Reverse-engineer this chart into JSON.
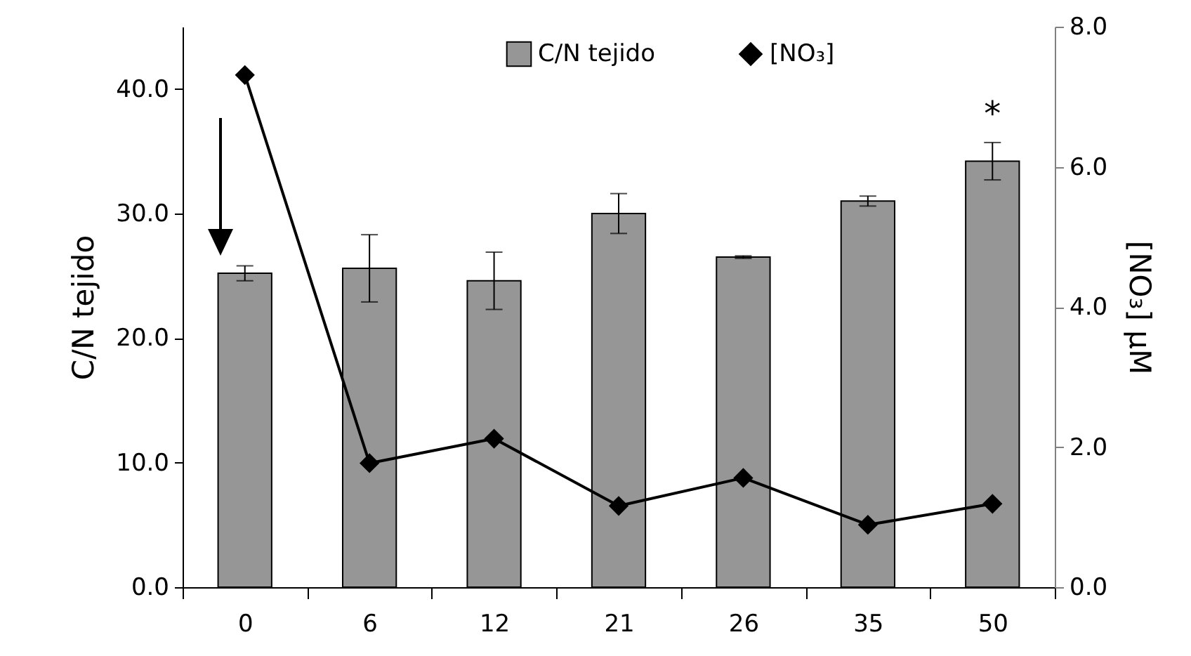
{
  "chart_data": {
    "type": "bar",
    "categories": [
      "0",
      "6",
      "12",
      "21",
      "26",
      "35",
      "50"
    ],
    "ylabel": "C/N tejido",
    "y2label": "[NO₃] μM",
    "series": [
      {
        "name": "C/N tejido",
        "color": "#969696",
        "values": [
          25.2,
          25.6,
          24.6,
          30.0,
          26.5,
          31.0,
          34.2
        ],
        "errors": [
          0.6,
          2.7,
          2.3,
          1.6,
          0.1,
          0.4,
          1.5
        ]
      },
      {
        "name": "[NO₃]",
        "type": "line",
        "axis": "y2",
        "color": "#000000",
        "values": [
          7.31,
          1.77,
          2.12,
          1.16,
          1.56,
          0.89,
          1.19
        ]
      }
    ],
    "ylim": [
      0,
      45
    ],
    "yticks": [
      {
        "value": 0,
        "label": "0.0"
      },
      {
        "value": 10,
        "label": "10.0"
      },
      {
        "value": 20,
        "label": "20.0"
      },
      {
        "value": 30,
        "label": "30.0"
      },
      {
        "value": 40,
        "label": "40.0"
      }
    ],
    "y2lim": [
      0,
      8
    ],
    "y2ticks": [
      {
        "value": 0,
        "label": "0.0"
      },
      {
        "value": 2,
        "label": "2.0"
      },
      {
        "value": 4,
        "label": "4.0"
      },
      {
        "value": 6,
        "label": "6.0"
      },
      {
        "value": 8,
        "label": "8.0"
      }
    ],
    "annotations": [
      "*"
    ],
    "marker": "diamond",
    "line_style": "solid",
    "legend": "top right",
    "grid": false
  }
}
